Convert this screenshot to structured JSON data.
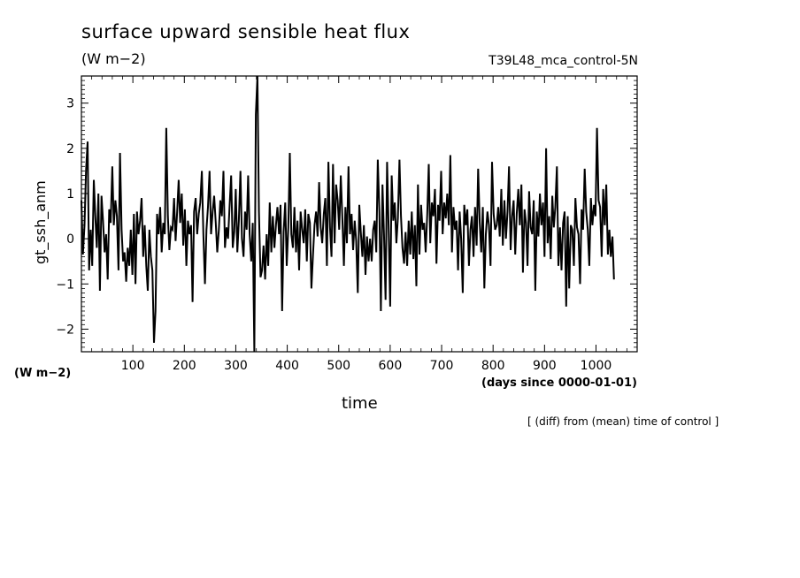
{
  "chart_data": {
    "type": "line",
    "title": "surface upward sensible heat flux",
    "units_label": "(W m−2)",
    "run_id": "T39L48_mca_control-5N",
    "ylabel": "gt_ssh_anm",
    "xlabel": "time",
    "x_units": "(days since 0000-01-01)",
    "y_units": "(W m−2)",
    "note": "[ (diff) from (mean) time of control ]",
    "xlim": [
      0,
      1080
    ],
    "ylim": [
      -2.5,
      3.6
    ],
    "x_ticks": [
      100,
      200,
      300,
      400,
      500,
      600,
      700,
      800,
      900,
      1000
    ],
    "y_ticks": [
      3,
      2,
      1,
      0,
      -1,
      -2
    ],
    "y_tick_labels": [
      "3",
      "2",
      "1",
      "0",
      "−1",
      "−2"
    ],
    "x_tick_labels": [
      "100",
      "200",
      "300",
      "400",
      "500",
      "600",
      "700",
      "800",
      "900",
      "1000"
    ],
    "grid": false,
    "legend": "none",
    "line_color": "#000000",
    "series": [
      {
        "x_step": 3,
        "x_start": 0,
        "values": [
          0.85,
          -0.35,
          0.3,
          1.5,
          2.15,
          -0.7,
          0.2,
          -0.6,
          1.3,
          0.5,
          -0.2,
          1.0,
          -1.15,
          0.95,
          0.4,
          -0.3,
          0.1,
          -0.9,
          0.65,
          0.35,
          1.6,
          0.3,
          0.85,
          0.5,
          -0.7,
          1.9,
          0.2,
          -0.5,
          -0.3,
          -0.95,
          -0.2,
          -0.6,
          0.2,
          -0.8,
          0.55,
          -1.0,
          0.6,
          0.1,
          0.4,
          0.9,
          -0.4,
          0.3,
          -0.6,
          -1.15,
          0.2,
          -0.4,
          -0.7,
          -2.3,
          -1.6,
          0.55,
          0.1,
          0.7,
          -0.3,
          0.35,
          0.1,
          2.45,
          0.5,
          -0.25,
          0.25,
          0.2,
          0.9,
          -0.05,
          0.6,
          1.3,
          0.35,
          1.0,
          -0.15,
          0.65,
          -0.6,
          0.4,
          0.1,
          0.3,
          -1.4,
          0.6,
          0.9,
          0.1,
          0.55,
          0.8,
          1.5,
          0.1,
          -1.0,
          0.2,
          0.7,
          1.5,
          0.1,
          0.6,
          0.95,
          0.35,
          -0.3,
          0.2,
          0.85,
          0.5,
          1.5,
          -0.2,
          0.25,
          0.0,
          0.75,
          1.4,
          -0.2,
          0.15,
          1.1,
          -0.3,
          0.4,
          1.5,
          0.0,
          -0.4,
          0.6,
          0.2,
          1.4,
          0.1,
          -0.5,
          0.35,
          -2.5,
          2.75,
          3.6,
          0.6,
          -0.85,
          -0.7,
          -0.15,
          -0.9,
          0.1,
          -0.6,
          0.8,
          -0.3,
          0.5,
          -0.2,
          0.3,
          0.7,
          0.1,
          0.75,
          -1.6,
          0.15,
          0.8,
          -0.6,
          0.25,
          1.9,
          0.1,
          -0.2,
          0.7,
          -0.3,
          0.4,
          -0.7,
          0.6,
          0.2,
          -0.1,
          0.65,
          -0.5,
          0.55,
          0.35,
          -1.1,
          -0.35,
          0.3,
          0.6,
          0.05,
          1.25,
          0.25,
          -0.1,
          0.55,
          0.9,
          -0.6,
          1.7,
          0.25,
          -0.4,
          1.65,
          -0.1,
          1.2,
          0.85,
          0.2,
          1.4,
          0.5,
          -0.6,
          0.7,
          -0.1,
          1.6,
          0.1,
          0.55,
          -0.25,
          0.4,
          -0.05,
          -1.2,
          0.75,
          0.15,
          -0.4,
          0.3,
          -0.8,
          0.05,
          -0.5,
          0.0,
          -0.5,
          0.2,
          0.4,
          -0.3,
          1.75,
          0.6,
          -1.6,
          1.2,
          0.1,
          -1.35,
          1.7,
          0.3,
          -1.5,
          1.4,
          0.4,
          0.8,
          -0.1,
          0.45,
          1.75,
          0.5,
          -0.2,
          -0.55,
          0.15,
          -0.6,
          0.4,
          -0.35,
          0.6,
          -0.45,
          0.3,
          -1.05,
          1.2,
          -0.35,
          0.75,
          0.2,
          0.35,
          -0.3,
          0.55,
          1.65,
          -0.1,
          0.8,
          0.5,
          1.1,
          -0.55,
          0.75,
          0.4,
          1.5,
          0.1,
          0.8,
          0.45,
          1.0,
          0.3,
          1.85,
          -0.3,
          0.7,
          0.2,
          0.4,
          -0.7,
          0.6,
          0.0,
          -1.2,
          0.75,
          0.3,
          0.65,
          -0.6,
          0.2,
          0.5,
          -0.4,
          0.7,
          -0.15,
          1.55,
          0.35,
          -0.3,
          0.7,
          -1.1,
          0.1,
          0.6,
          0.3,
          -0.6,
          1.7,
          0.55,
          0.2,
          0.3,
          0.7,
          0.05,
          1.1,
          -0.15,
          0.85,
          0.0,
          0.6,
          1.6,
          -0.25,
          0.5,
          0.85,
          -0.35,
          0.55,
          1.1,
          0.3,
          1.2,
          -0.75,
          0.65,
          0.35,
          -0.6,
          1.05,
          0.25,
          0.1,
          0.85,
          -1.15,
          0.6,
          0.05,
          1.0,
          0.3,
          0.8,
          -0.4,
          2.0,
          -0.1,
          0.5,
          -0.45,
          0.95,
          0.25,
          0.7,
          1.6,
          -0.6,
          0.25,
          -0.7,
          0.35,
          0.6,
          -1.5,
          0.5,
          -1.1,
          0.3,
          0.2,
          -0.6,
          0.9,
          0.25,
          0.1,
          -1.0,
          0.65,
          0.2,
          1.55,
          0.6,
          0.2,
          -0.6,
          0.9,
          0.3,
          0.75,
          0.5,
          2.45,
          0.85,
          0.7,
          -0.4,
          1.1,
          0.3,
          1.2,
          -0.35,
          0.2,
          -0.4,
          0.05,
          -0.9
        ]
      }
    ]
  }
}
